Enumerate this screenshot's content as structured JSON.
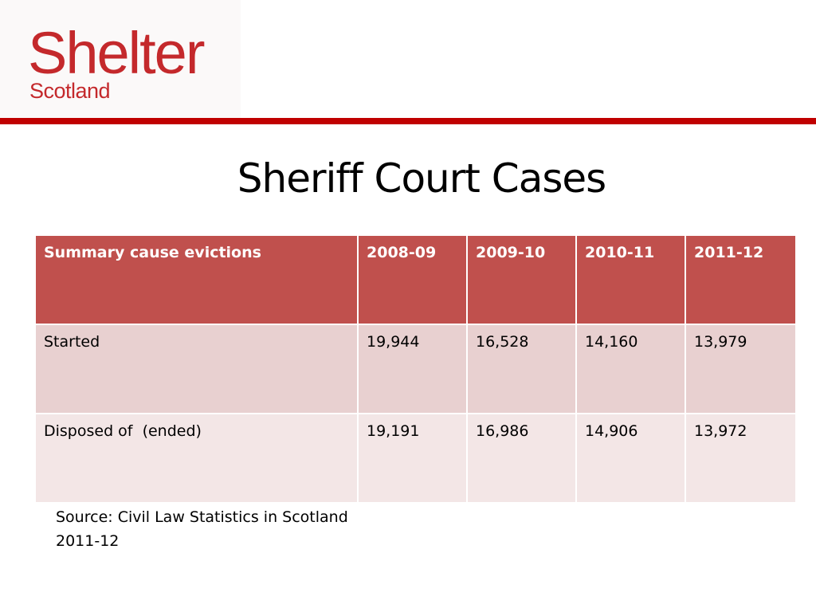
{
  "logo": {
    "main": "Shelter",
    "sub": "Scotland"
  },
  "slide": {
    "title": "Sheriff Court Cases"
  },
  "table": {
    "headers": [
      "Summary cause evictions",
      "2008-09",
      "2009-10",
      "2010-11",
      "2011-12"
    ],
    "rows": [
      [
        "Started",
        "19,944",
        "16,528",
        "14,160",
        "13,979"
      ],
      [
        "Disposed of  (ended)",
        "19,191",
        "16,986",
        "14,906",
        "13,972"
      ]
    ]
  },
  "source": {
    "line1": "Source: Civil Law Statistics in Scotland",
    "line2": "2011-12"
  },
  "colors": {
    "brand_red": "#c4292c",
    "rule_red": "#c00000",
    "header_bg": "#c0504d",
    "row1_bg": "#e8d0d0",
    "row2_bg": "#f3e6e6"
  }
}
